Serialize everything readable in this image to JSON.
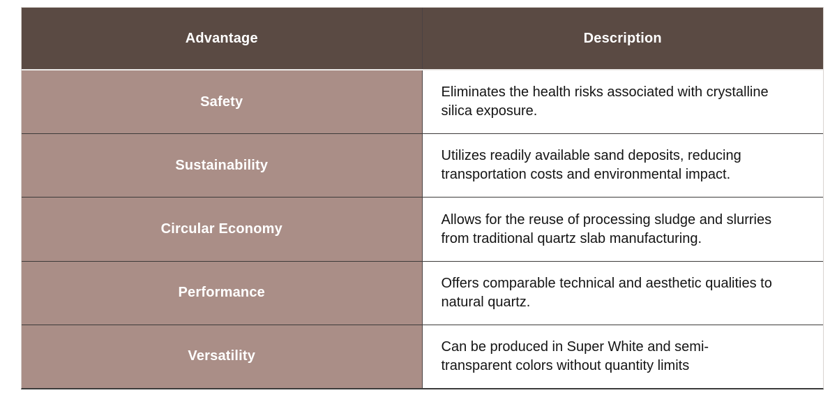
{
  "table": {
    "header": {
      "advantage": "Advantage",
      "description": "Description"
    },
    "rows": [
      {
        "advantage": "Safety",
        "description": "Eliminates the health risks associated with crystalline silica exposure."
      },
      {
        "advantage": "Sustainability",
        "description": "Utilizes readily available sand deposits, reducing transportation costs and environmental impact."
      },
      {
        "advantage": "Circular Economy",
        "description": "Allows for the reuse of processing sludge and slurries from traditional quartz slab manufacturing."
      },
      {
        "advantage": "Performance",
        "description": "Offers comparable technical and aesthetic qualities to natural quartz."
      },
      {
        "advantage": "Versatility",
        "description": "Can be produced in Super White and semi-transparent colors without quantity limits"
      }
    ],
    "colors": {
      "header_bg": "#5A4A43",
      "advantage_bg": "#AA8E87",
      "description_bg": "#FFFFFF",
      "header_text": "#FFFFFF",
      "advantage_text": "#FFFFFF",
      "description_text": "#141414",
      "row_divider": "#3D3B3A",
      "column_divider": "#4B4343",
      "outer_border": "#D8D3D0",
      "header_underline": "#ECEAE8",
      "bottom_border": "#3B3B3B"
    }
  }
}
